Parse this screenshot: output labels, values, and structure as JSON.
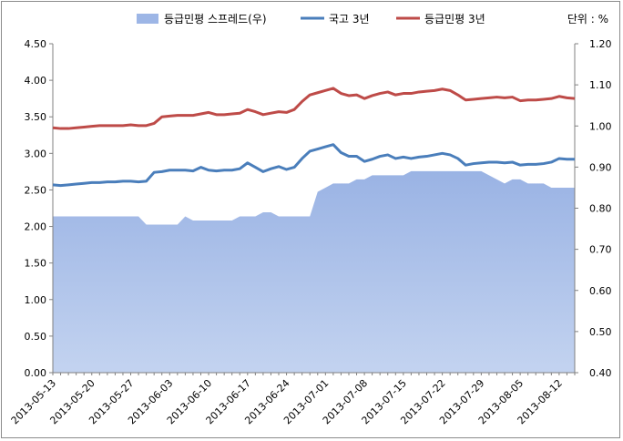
{
  "chart_data": {
    "type": "line",
    "legend": [
      {
        "label": "등급민평 스프레드(우)",
        "kind": "area",
        "color": "#9db6e6"
      },
      {
        "label": "국고 3년",
        "kind": "line",
        "color": "#4a7ebb"
      },
      {
        "label": "등급민평 3년",
        "kind": "line",
        "color": "#be4b48"
      }
    ],
    "unit_label": "단위 : %",
    "legend_placement": "top",
    "left_axis": {
      "min": 0,
      "max": 4.5,
      "step": 0.5,
      "ticks": [
        "0.00",
        "0.50",
        "1.00",
        "1.50",
        "2.00",
        "2.50",
        "3.00",
        "3.50",
        "4.00",
        "4.50"
      ]
    },
    "right_axis": {
      "min": 0.4,
      "max": 1.2,
      "step": 0.1,
      "ticks": [
        "0.40",
        "0.50",
        "0.60",
        "0.70",
        "0.80",
        "0.90",
        "1.00",
        "1.10",
        "1.20"
      ]
    },
    "x_tick_labels": [
      "2013-05-13",
      "2013-05-20",
      "2013-05-27",
      "2013-06-03",
      "2013-06-10",
      "2013-06-17",
      "2013-06-24",
      "2013-07-01",
      "2013-07-08",
      "2013-07-15",
      "2013-07-22",
      "2013-07-29",
      "2013-08-05",
      "2013-08-12"
    ],
    "x_tick_every": 5,
    "x": [
      "2013-05-13",
      "2013-05-14",
      "2013-05-15",
      "2013-05-16",
      "2013-05-17",
      "2013-05-20",
      "2013-05-21",
      "2013-05-22",
      "2013-05-23",
      "2013-05-24",
      "2013-05-27",
      "2013-05-28",
      "2013-05-29",
      "2013-05-30",
      "2013-05-31",
      "2013-06-03",
      "2013-06-04",
      "2013-06-05",
      "2013-06-06",
      "2013-06-07",
      "2013-06-10",
      "2013-06-11",
      "2013-06-12",
      "2013-06-13",
      "2013-06-14",
      "2013-06-17",
      "2013-06-18",
      "2013-06-19",
      "2013-06-20",
      "2013-06-21",
      "2013-06-24",
      "2013-06-25",
      "2013-06-26",
      "2013-06-27",
      "2013-06-28",
      "2013-07-01",
      "2013-07-02",
      "2013-07-03",
      "2013-07-04",
      "2013-07-05",
      "2013-07-08",
      "2013-07-09",
      "2013-07-10",
      "2013-07-11",
      "2013-07-12",
      "2013-07-15",
      "2013-07-16",
      "2013-07-17",
      "2013-07-18",
      "2013-07-19",
      "2013-07-22",
      "2013-07-23",
      "2013-07-24",
      "2013-07-25",
      "2013-07-26",
      "2013-07-29",
      "2013-07-30",
      "2013-07-31",
      "2013-08-01",
      "2013-08-02",
      "2013-08-05",
      "2013-08-06",
      "2013-08-07",
      "2013-08-08",
      "2013-08-09",
      "2013-08-12",
      "2013-08-13",
      "2013-08-14"
    ],
    "series": [
      {
        "name": "등급민평 스프레드(우)",
        "axis": "right",
        "kind": "area",
        "values": [
          0.78,
          0.78,
          0.78,
          0.78,
          0.78,
          0.78,
          0.78,
          0.78,
          0.78,
          0.78,
          0.78,
          0.78,
          0.76,
          0.76,
          0.76,
          0.76,
          0.76,
          0.78,
          0.77,
          0.77,
          0.77,
          0.77,
          0.77,
          0.77,
          0.78,
          0.78,
          0.78,
          0.79,
          0.79,
          0.78,
          0.78,
          0.78,
          0.78,
          0.78,
          0.84,
          0.85,
          0.86,
          0.86,
          0.86,
          0.87,
          0.87,
          0.88,
          0.88,
          0.88,
          0.88,
          0.88,
          0.89,
          0.89,
          0.89,
          0.89,
          0.89,
          0.89,
          0.89,
          0.89,
          0.89,
          0.89,
          0.88,
          0.87,
          0.86,
          0.87,
          0.87,
          0.86,
          0.86,
          0.86,
          0.85,
          0.85,
          0.85,
          0.85
        ]
      },
      {
        "name": "국고 3년",
        "axis": "left",
        "kind": "line",
        "values": [
          2.57,
          2.56,
          2.57,
          2.58,
          2.59,
          2.6,
          2.6,
          2.61,
          2.61,
          2.62,
          2.62,
          2.61,
          2.62,
          2.74,
          2.75,
          2.77,
          2.77,
          2.77,
          2.76,
          2.81,
          2.77,
          2.76,
          2.77,
          2.77,
          2.79,
          2.87,
          2.81,
          2.75,
          2.79,
          2.82,
          2.78,
          2.81,
          2.93,
          3.03,
          3.06,
          3.09,
          3.12,
          3.01,
          2.96,
          2.96,
          2.89,
          2.92,
          2.96,
          2.98,
          2.93,
          2.95,
          2.93,
          2.95,
          2.96,
          2.98,
          3.0,
          2.98,
          2.93,
          2.84,
          2.86,
          2.87,
          2.88,
          2.88,
          2.87,
          2.88,
          2.84,
          2.85,
          2.85,
          2.86,
          2.88,
          2.93,
          2.92,
          2.92
        ]
      },
      {
        "name": "등급민평 3년",
        "axis": "left",
        "kind": "line",
        "values": [
          3.35,
          3.34,
          3.34,
          3.35,
          3.36,
          3.37,
          3.38,
          3.38,
          3.38,
          3.38,
          3.39,
          3.38,
          3.38,
          3.41,
          3.5,
          3.51,
          3.52,
          3.52,
          3.52,
          3.54,
          3.56,
          3.53,
          3.53,
          3.54,
          3.55,
          3.6,
          3.57,
          3.53,
          3.55,
          3.57,
          3.56,
          3.6,
          3.71,
          3.8,
          3.83,
          3.86,
          3.89,
          3.82,
          3.79,
          3.8,
          3.75,
          3.79,
          3.82,
          3.84,
          3.8,
          3.82,
          3.82,
          3.84,
          3.85,
          3.86,
          3.88,
          3.86,
          3.8,
          3.73,
          3.74,
          3.75,
          3.76,
          3.77,
          3.76,
          3.77,
          3.72,
          3.73,
          3.73,
          3.74,
          3.75,
          3.78,
          3.76,
          3.75
        ]
      }
    ]
  }
}
